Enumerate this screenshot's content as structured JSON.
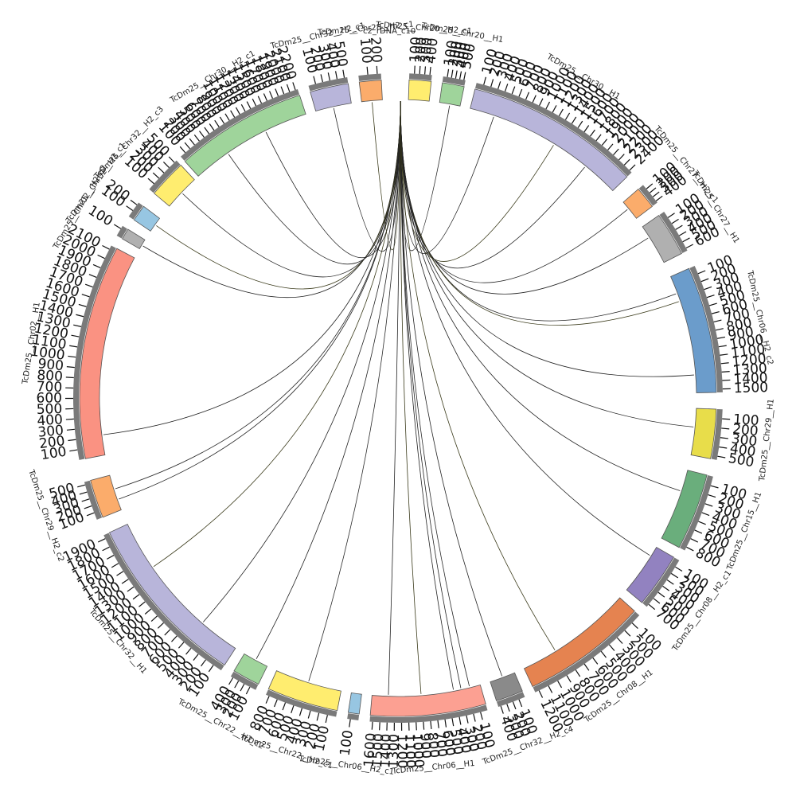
{
  "diagram": {
    "type": "circos",
    "center_label": "c2_rDNA_c10",
    "segments": [
      {
        "id": "chr20_h2_c1",
        "label": "TcDm25__Chr20__H2_c1",
        "color": "#ffed6f",
        "length": 400,
        "ticks": [
          "100",
          "200",
          "300",
          "400"
        ]
      },
      {
        "id": "chr20_h1",
        "label": "TcDm25__Chr20__H1",
        "color": "#9fd49b",
        "length": 500,
        "ticks": [
          "100",
          "200",
          "300",
          "400",
          "500"
        ]
      },
      {
        "id": "chr30_h1",
        "label": "TcDm25__Chr30__H1",
        "color": "#b8b5da",
        "length": 2500,
        "ticks": [
          "100",
          "200",
          "300",
          "400",
          "500",
          "600",
          "700",
          "800",
          "900",
          "1000",
          "1100",
          "1200",
          "1300",
          "1400",
          "1500",
          "1600",
          "1700",
          "1800",
          "1900",
          "2000",
          "2100",
          "2200",
          "2300",
          "2400"
        ]
      },
      {
        "id": "chr27_h2",
        "label": "TcDm25__Chr27__H2_c1",
        "color": "#fbac6b",
        "length": 400,
        "ticks": [
          "100",
          "200",
          "300",
          "400"
        ]
      },
      {
        "id": "chr27_h1",
        "label": "TcDm25__Chr27__H1",
        "color": "#b0b0b0",
        "length": 600,
        "ticks": [
          "100",
          "200",
          "300",
          "400",
          "500",
          "600"
        ]
      },
      {
        "id": "chr06_h2_c2",
        "label": "TcDm25__Chr06__H2_c2",
        "color": "#6b9ccb",
        "length": 1500,
        "ticks": [
          "100",
          "200",
          "300",
          "400",
          "500",
          "600",
          "700",
          "800",
          "900",
          "1000",
          "1100",
          "1200",
          "1300",
          "1400",
          "1500"
        ]
      },
      {
        "id": "chr29_h1",
        "label": "TcDm25__Chr29__H1",
        "color": "#e8dd4a",
        "length": 500,
        "ticks": [
          "100",
          "200",
          "300",
          "400",
          "500"
        ]
      },
      {
        "id": "chr15_h1",
        "label": "TcDm25__Chr15__H1",
        "color": "#6aae7c",
        "length": 800,
        "ticks": [
          "100",
          "200",
          "300",
          "400",
          "500",
          "600",
          "700",
          "800"
        ]
      },
      {
        "id": "chr08_h2_c1",
        "label": "TcDm25__Chr08__H2_c1",
        "color": "#9282c0",
        "length": 700,
        "ticks": [
          "100",
          "200",
          "300",
          "400",
          "500",
          "600",
          "700"
        ]
      },
      {
        "id": "chr08_h1",
        "label": "TcDm25__Chr08__H1",
        "color": "#e58350",
        "length": 1200,
        "ticks": [
          "100",
          "200",
          "300",
          "400",
          "500",
          "600",
          "700",
          "800",
          "900",
          "1000",
          "1100",
          "1200"
        ]
      },
      {
        "id": "chr32_h2_c4",
        "label": "TcDm25__Chr32__H2_c4",
        "color": "#8a8a8a",
        "length": 400,
        "ticks": [
          "100",
          "200",
          "300",
          "400"
        ]
      },
      {
        "id": "chr06_h1",
        "label": "TcDm25__Chr06__H1",
        "color": "#fca092",
        "length": 1600,
        "ticks": [
          "100",
          "200",
          "300",
          "400",
          "500",
          "600",
          "700",
          "800",
          "900",
          "1000",
          "1100",
          "1200",
          "1300",
          "1400",
          "1500",
          "1600"
        ]
      },
      {
        "id": "chr06_h2_c1",
        "label": "TcDm25__Chr06__H2_c1",
        "color": "#97c6e2",
        "length": 100,
        "ticks": [
          "100"
        ]
      },
      {
        "id": "chr22_h2_c1",
        "label": "TcDm25__Chr22__H2_c1",
        "color": "#ffed6f",
        "length": 800,
        "ticks": [
          "100",
          "200",
          "300",
          "400",
          "500",
          "600",
          "700",
          "800"
        ]
      },
      {
        "id": "chr22_h2_c2",
        "label": "TcDm25__Chr22__H2_c2",
        "color": "#9fd49b",
        "length": 400,
        "ticks": [
          "100",
          "200",
          "300",
          "400"
        ]
      },
      {
        "id": "chr32_h1",
        "label": "TcDm25__Chr32__H1",
        "color": "#b8b5da",
        "length": 1900,
        "ticks": [
          "100",
          "200",
          "300",
          "400",
          "500",
          "600",
          "700",
          "800",
          "900",
          "1000",
          "1100",
          "1200",
          "1300",
          "1400",
          "1500",
          "1600",
          "1700",
          "1800",
          "1900"
        ]
      },
      {
        "id": "chr29_h2_c2",
        "label": "TcDm25__Chr29__H2_c2",
        "color": "#fbac6b",
        "length": 500,
        "ticks": [
          "100",
          "200",
          "300",
          "400",
          "500"
        ]
      },
      {
        "id": "chr02_h1",
        "label": "TcDm25__Chr02__H1",
        "color": "#fa9282",
        "length": 2100,
        "ticks": [
          "100",
          "200",
          "300",
          "400",
          "500",
          "600",
          "700",
          "800",
          "900",
          "1000",
          "1100",
          "1200",
          "1300",
          "1400",
          "1500",
          "1600",
          "1700",
          "1800",
          "1900",
          "2000",
          "2100"
        ]
      },
      {
        "id": "chr02_h2_c2",
        "label": "TcDm25__Chr02__H2_c2",
        "color": "#b0b0b0",
        "length": 100,
        "ticks": [
          "100"
        ]
      },
      {
        "id": "chr02_h2_c1",
        "label": "TcDm25__Chr02__H2_c1",
        "color": "#97c6e2",
        "length": 200,
        "ticks": [
          "100",
          "200"
        ]
      },
      {
        "id": "chr32_h2_c3",
        "label": "TcDm25__Chr32__H2_c3",
        "color": "#ffed6f",
        "length": 500,
        "ticks": [
          "100",
          "200",
          "300",
          "400",
          "500"
        ]
      },
      {
        "id": "chr30_h2_c1",
        "label": "TcDm25__Chr30__H2_c1",
        "color": "#9fd49b",
        "length": 2200,
        "ticks": [
          "100",
          "200",
          "300",
          "400",
          "500",
          "600",
          "700",
          "800",
          "900",
          "1000",
          "1100",
          "1200",
          "1300",
          "1400",
          "1500",
          "1600",
          "1700",
          "1800",
          "1900",
          "2000",
          "2100",
          "2200"
        ]
      },
      {
        "id": "chr32_h2_c1",
        "label": "TcDm25__Chr32__H2_c1",
        "color": "#b8b5da",
        "length": 500,
        "ticks": [
          "100",
          "200",
          "300",
          "400",
          "500"
        ]
      },
      {
        "id": "chr28_h2",
        "label": "TcDm25__Chr28__H2_c1",
        "color": "#fbac6b",
        "length": 200,
        "ticks": [
          "100",
          "200"
        ]
      }
    ],
    "links": [
      {
        "to": "chr20_h1",
        "pos": 0.5
      },
      {
        "to": "chr30_h1",
        "pos": 0.15
      },
      {
        "to": "chr30_h1",
        "pos": 0.55
      },
      {
        "to": "chr30_h1",
        "pos": 0.78
      },
      {
        "to": "chr27_h2",
        "pos": 0.4
      },
      {
        "to": "chr27_h1",
        "pos": 0.3
      },
      {
        "to": "chr06_h2_c2",
        "pos": 0.15
      },
      {
        "to": "chr06_h2_c2",
        "pos": 0.22
      },
      {
        "to": "chr06_h2_c2",
        "pos": 0.85
      },
      {
        "to": "chr29_h1",
        "pos": 0.4
      },
      {
        "to": "chr15_h1",
        "pos": 0.3
      },
      {
        "to": "chr08_h2_c1",
        "pos": 0.2
      },
      {
        "to": "chr08_h1",
        "pos": 0.7
      },
      {
        "to": "chr32_h2_c4",
        "pos": 0.5
      },
      {
        "to": "chr06_h1",
        "pos": 0.1
      },
      {
        "to": "chr06_h1",
        "pos": 0.18
      },
      {
        "to": "chr06_h1",
        "pos": 0.25
      },
      {
        "to": "chr06_h1",
        "pos": 0.55
      },
      {
        "to": "chr06_h1",
        "pos": 0.85
      },
      {
        "to": "chr22_h2_c1",
        "pos": 0.5
      },
      {
        "to": "chr22_h2_c2",
        "pos": 0.5
      },
      {
        "to": "chr32_h1",
        "pos": 0.25
      },
      {
        "to": "chr32_h1",
        "pos": 0.7
      },
      {
        "to": "chr29_h2_c2",
        "pos": 0.3
      },
      {
        "to": "chr29_h2_c2",
        "pos": 0.6
      },
      {
        "to": "chr02_h1",
        "pos": 0.1
      },
      {
        "to": "chr02_h2_c2",
        "pos": 0.4
      },
      {
        "to": "chr02_h2_c1",
        "pos": 0.5
      },
      {
        "to": "chr32_h2_c3",
        "pos": 0.5
      },
      {
        "to": "chr30_h2_c1",
        "pos": 0.3
      },
      {
        "to": "chr30_h2_c1",
        "pos": 0.65
      },
      {
        "to": "chr32_h2_c1",
        "pos": 0.5
      },
      {
        "to": "chr28_h2",
        "pos": 0.5
      }
    ]
  }
}
